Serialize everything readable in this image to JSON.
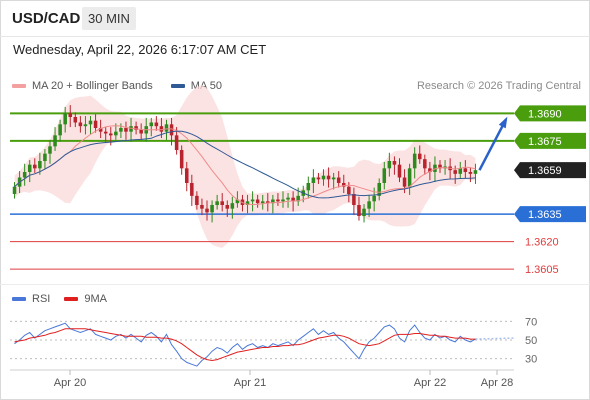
{
  "header": {
    "symbol": "USD/CAD",
    "timeframe": "30 MIN"
  },
  "datetime": "Wednesday, April 22, 2026 6:17:07 AM CET",
  "legend": {
    "ma20_label": "MA 20 + Bollinger Bands",
    "ma50_label": "MA 50",
    "ma20_color": "#f08080",
    "ma50_color": "#2f5a96"
  },
  "research": "Research © 2026 Trading Central",
  "rsi_legend": {
    "rsi_label": "RSI",
    "ma_label": "9MA",
    "rsi_color": "#4a78d8",
    "ma_color": "#e02020"
  },
  "chart_data": {
    "type": "candlestick",
    "x_labels": [
      "Apr 20",
      "Apr 21",
      "Apr 22",
      "Apr 28"
    ],
    "price_range": [
      1.3598,
      1.37
    ],
    "current_price": "1.3659",
    "levels": [
      {
        "label": "1.3690",
        "value": 1.369,
        "kind": "resistance",
        "color": "#4a9e0e"
      },
      {
        "label": "1.3675",
        "value": 1.3675,
        "kind": "resistance",
        "color": "#4a9e0e"
      },
      {
        "label": "1.3635",
        "value": 1.3635,
        "kind": "pivot",
        "color": "#2a6fd6"
      },
      {
        "label": "1.3620",
        "value": 1.362,
        "kind": "support",
        "color": "#e03c3c"
      },
      {
        "label": "1.3605",
        "value": 1.3605,
        "kind": "support",
        "color": "#e03c3c"
      }
    ],
    "closes": [
      1.365,
      1.3655,
      1.3658,
      1.3662,
      1.366,
      1.3664,
      1.3668,
      1.3672,
      1.3678,
      1.3684,
      1.369,
      1.3688,
      1.3685,
      1.3683,
      1.3684,
      1.3686,
      1.3682,
      1.368,
      1.3679,
      1.3678,
      1.368,
      1.3682,
      1.368,
      1.3683,
      1.3681,
      1.3679,
      1.3683,
      1.3685,
      1.3683,
      1.368,
      1.3684,
      1.3678,
      1.367,
      1.366,
      1.3652,
      1.3645,
      1.364,
      1.3638,
      1.3636,
      1.364,
      1.3642,
      1.364,
      1.3638,
      1.3641,
      1.3643,
      1.364,
      1.3642,
      1.3643,
      1.3641,
      1.3642,
      1.3641,
      1.3643,
      1.3642,
      1.3643,
      1.3644,
      1.3642,
      1.3645,
      1.3648,
      1.3652,
      1.3655,
      1.3654,
      1.3656,
      1.3654,
      1.3655,
      1.3652,
      1.365,
      1.3646,
      1.364,
      1.3634,
      1.3638,
      1.3642,
      1.3645,
      1.3652,
      1.366,
      1.3664,
      1.3662,
      1.3655,
      1.365,
      1.366,
      1.3668,
      1.3665,
      1.366,
      1.3658,
      1.3662,
      1.366,
      1.3661,
      1.3659,
      1.3657,
      1.366,
      1.3658,
      1.3657,
      1.3659
    ],
    "forecast_arrow": {
      "from": 1.3659,
      "to": 1.369
    },
    "rsi": {
      "ticks": [
        70,
        50,
        30
      ],
      "rsi_values": [
        46,
        50,
        55,
        58,
        52,
        56,
        60,
        62,
        64,
        66,
        68,
        62,
        60,
        58,
        60,
        62,
        56,
        54,
        52,
        50,
        54,
        56,
        52,
        56,
        52,
        48,
        55,
        58,
        54,
        48,
        56,
        45,
        38,
        30,
        26,
        24,
        22,
        28,
        32,
        38,
        42,
        40,
        36,
        42,
        46,
        40,
        44,
        46,
        42,
        44,
        42,
        46,
        44,
        46,
        48,
        44,
        50,
        54,
        58,
        62,
        56,
        60,
        56,
        58,
        52,
        48,
        42,
        36,
        30,
        40,
        48,
        52,
        58,
        64,
        66,
        62,
        52,
        48,
        60,
        66,
        58,
        52,
        50,
        56,
        52,
        54,
        50,
        48,
        54,
        50,
        48,
        51
      ],
      "ma_values": [
        48,
        49,
        50,
        52,
        53,
        54,
        55,
        57,
        58,
        60,
        62,
        62,
        62,
        62,
        62,
        61,
        60,
        59,
        58,
        57,
        56,
        55,
        54,
        54,
        54,
        54,
        53,
        53,
        53,
        52,
        52,
        51,
        49,
        46,
        42,
        38,
        34,
        31,
        29,
        28,
        29,
        31,
        33,
        35,
        37,
        38,
        39,
        40,
        41,
        42,
        42,
        43,
        43,
        44,
        44,
        45,
        45,
        46,
        48,
        50,
        52,
        53,
        54,
        55,
        55,
        54,
        52,
        49,
        46,
        45,
        44,
        45,
        46,
        49,
        52,
        55,
        56,
        56,
        56,
        57,
        57,
        56,
        55,
        55,
        54,
        54,
        53,
        52,
        52,
        52,
        51,
        51
      ]
    }
  }
}
